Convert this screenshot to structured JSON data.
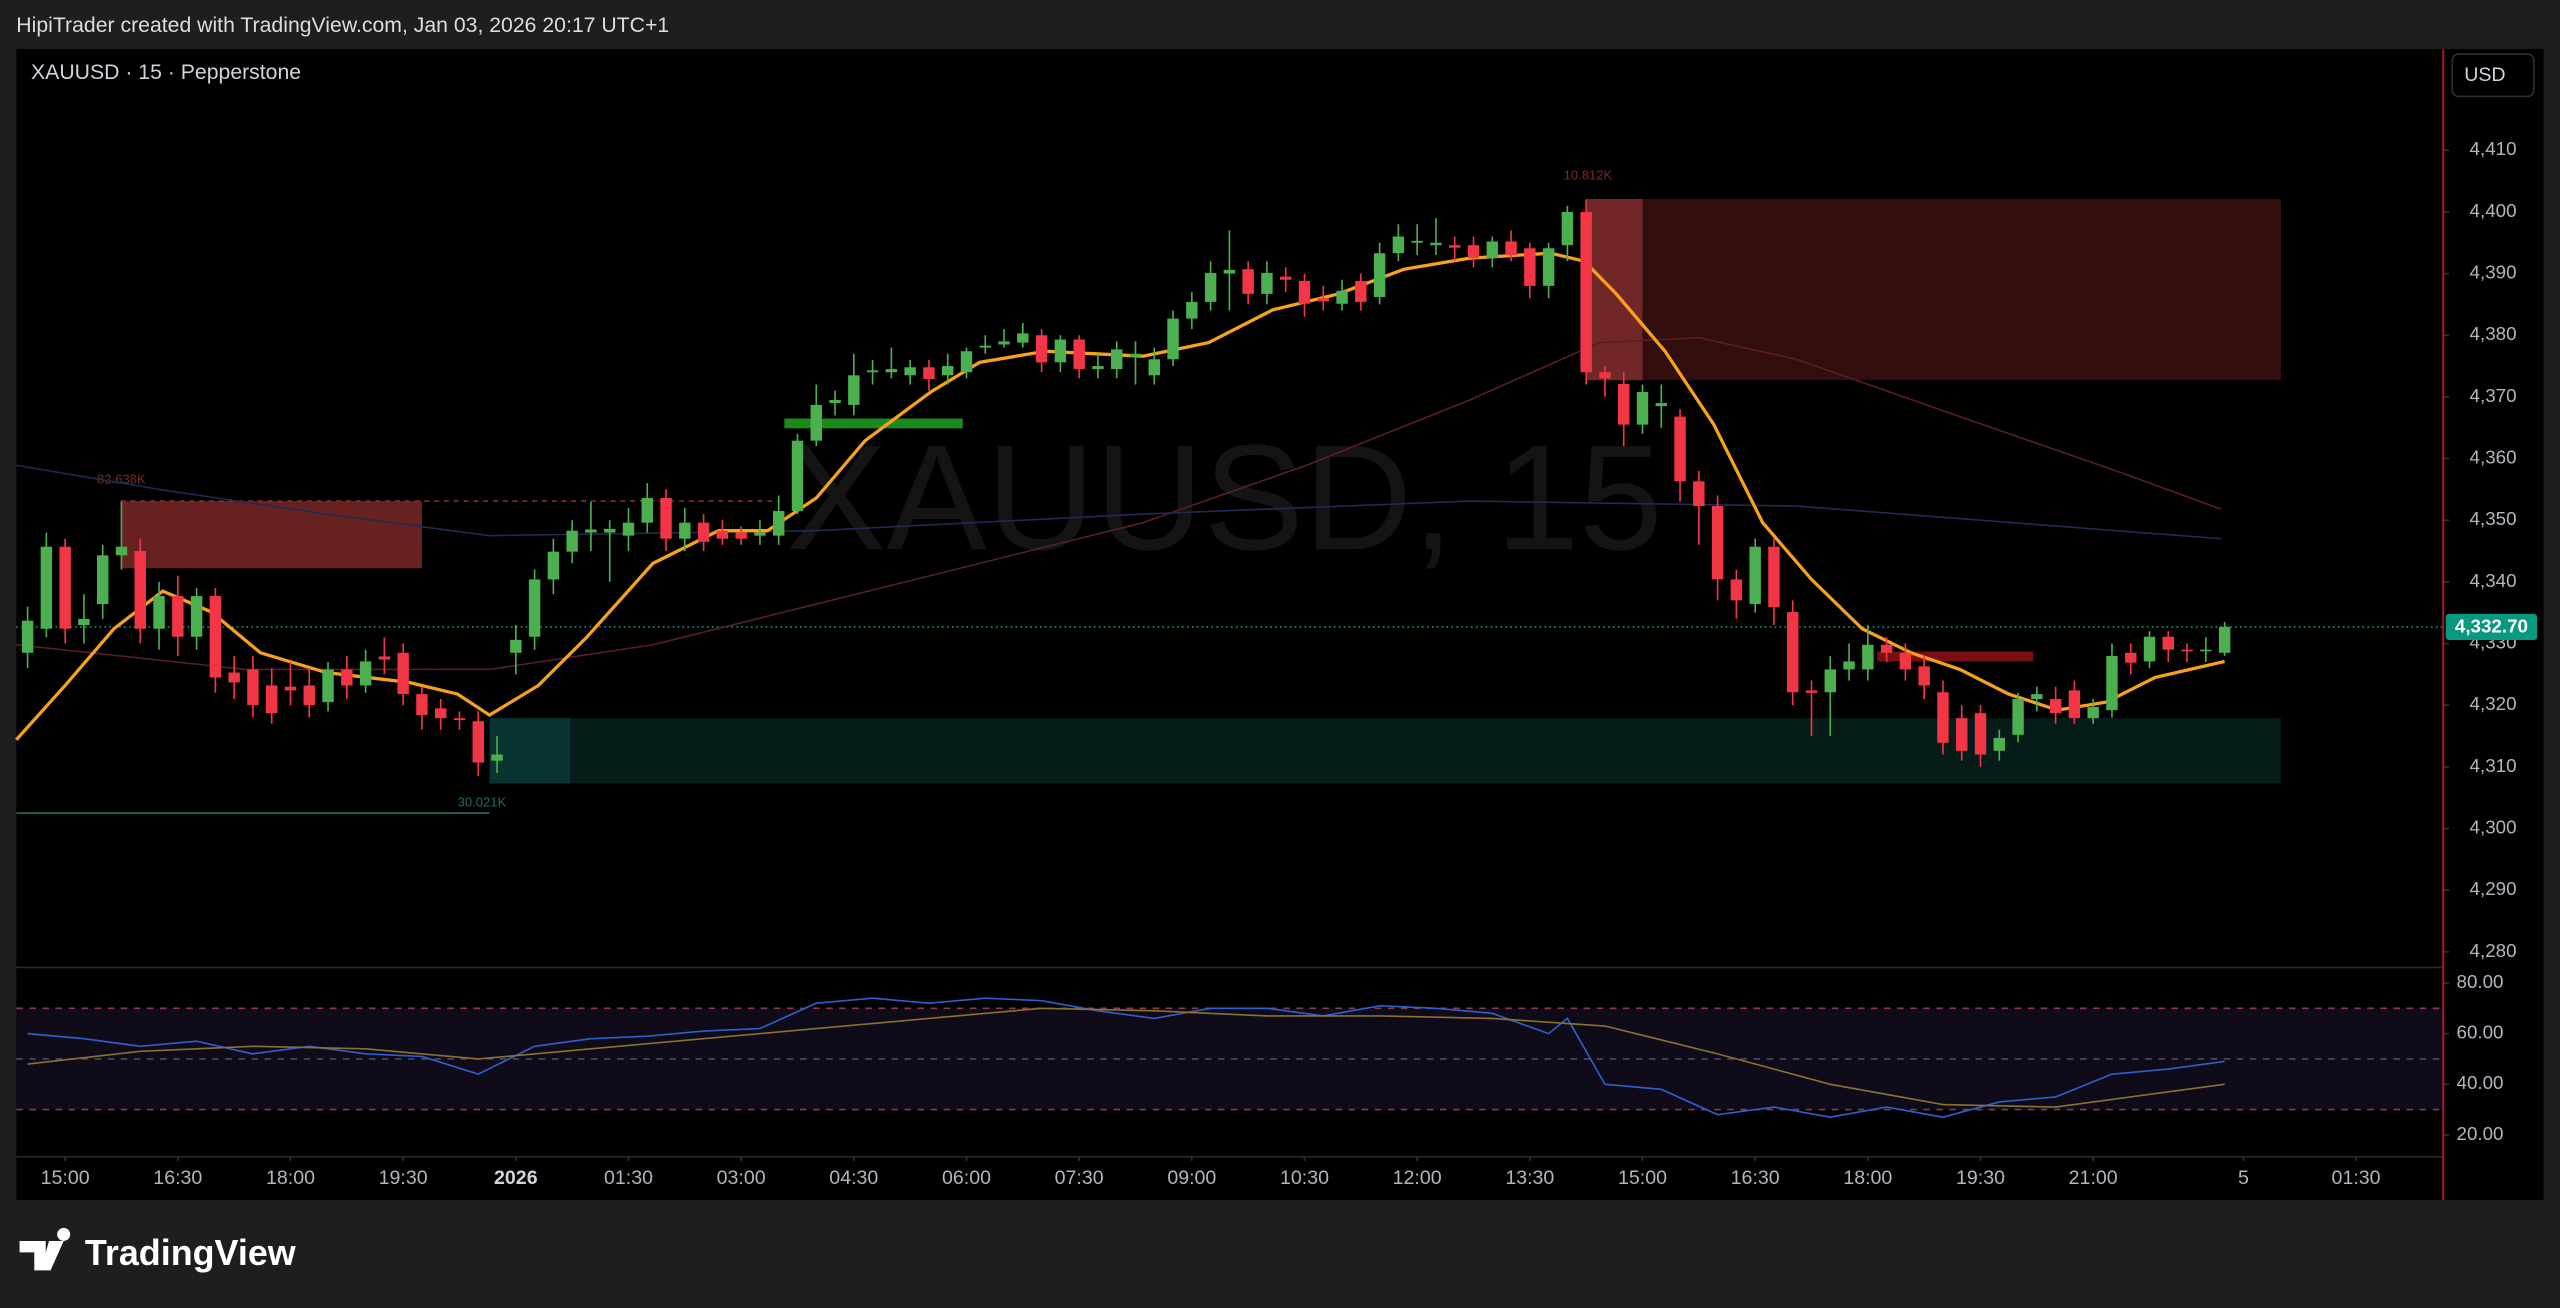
{
  "caption": "HipiTrader created with TradingView.com, Jan 03, 2026 20:17 UTC+1",
  "brand": "TradingView",
  "chart_data": {
    "type": "candlestick",
    "symbol_label": "XAUUSD · 15 · Pepperstone",
    "watermark": "XAUUSD, 15",
    "currency": "USD",
    "up_color": "#4caf50",
    "down_color": "#f23645",
    "xlim": [
      -0.6,
      128.6
    ],
    "xticks": [
      {
        "value": 2,
        "label": "15:00"
      },
      {
        "value": 8,
        "label": "16:30"
      },
      {
        "value": 14,
        "label": "18:00"
      },
      {
        "value": 20,
        "label": "19:30"
      },
      {
        "value": 26,
        "label": "2026"
      },
      {
        "value": 32,
        "label": "01:30"
      },
      {
        "value": 38,
        "label": "03:00"
      },
      {
        "value": 44,
        "label": "04:30"
      },
      {
        "value": 50,
        "label": "06:00"
      },
      {
        "value": 56,
        "label": "07:30"
      },
      {
        "value": 62,
        "label": "09:00"
      },
      {
        "value": 68,
        "label": "10:30"
      },
      {
        "value": 74,
        "label": "12:00"
      },
      {
        "value": 80,
        "label": "13:30"
      },
      {
        "value": 86,
        "label": "15:00"
      },
      {
        "value": 92,
        "label": "16:30"
      },
      {
        "value": 98,
        "label": "18:00"
      },
      {
        "value": 104,
        "label": "19:30"
      },
      {
        "value": 110,
        "label": "21:00"
      },
      {
        "value": 118,
        "label": "5"
      },
      {
        "value": 124,
        "label": "01:30"
      }
    ],
    "bold_ticks": [
      4
    ],
    "ylim": [
      4277.6,
      4426.4
    ],
    "yticks": [
      {
        "value": 4280,
        "label": "4,280"
      },
      {
        "value": 4290,
        "label": "4,290"
      },
      {
        "value": 4300,
        "label": "4,300"
      },
      {
        "value": 4310,
        "label": "4,310"
      },
      {
        "value": 4320,
        "label": "4,320"
      },
      {
        "value": 4330,
        "label": "4,330"
      },
      {
        "value": 4340,
        "label": "4,340"
      },
      {
        "value": 4350,
        "label": "4,350"
      },
      {
        "value": 4360,
        "label": "4,360"
      },
      {
        "value": 4370,
        "label": "4,370"
      },
      {
        "value": 4380,
        "label": "4,380"
      },
      {
        "value": 4390,
        "label": "4,390"
      },
      {
        "value": 4400,
        "label": "4,400"
      },
      {
        "value": 4410,
        "label": "4,410"
      }
    ],
    "open": [
      4328.5,
      4332.4,
      4345.7,
      4333,
      4336.4,
      4344.3,
      4345,
      4332.4,
      4337.7,
      4331.1,
      4337.7,
      4325.3,
      4325.8,
      4323.2,
      4323,
      4323.2,
      4320.5,
      4325.8,
      4323.2,
      4327.9,
      4328.5,
      4321.8,
      4319.5,
      4317.9,
      4317.4,
      4311,
      4328.5,
      4331.1,
      4340.4,
      4344.9,
      4348,
      4348,
      4347.5,
      4349.6,
      4353.6,
      4347,
      4349.6,
      4348.3,
      4348,
      4347.5,
      4347.5,
      4351.5,
      4362.9,
      4369,
      4368.7,
      4374,
      4374,
      4373.5,
      4374.8,
      4373.5,
      4374,
      4378,
      4378.5,
      4378.8,
      4380,
      4375.6,
      4379.3,
      4374.5,
      4374.5,
      4376.5,
      4373.5,
      4376.1,
      4382.7,
      4385.4,
      4390,
      4390.7,
      4386.7,
      4389.5,
      4388.8,
      4386,
      4385.1,
      4388.8,
      4386.2,
      4393.3,
      4395,
      4394.6,
      4394.6,
      4394.6,
      4392.5,
      4395.2,
      4394.1,
      4388,
      4394.6,
      4400,
      4374,
      4372.1,
      4365.5,
      4368.5,
      4366.8,
      4356.3,
      4352.3,
      4340.4,
      4336.4,
      4345.7,
      4335.1,
      4322.4,
      4322.1,
      4325.8,
      4325.8,
      4329.8,
      4328.5,
      4326.3,
      4322.1,
      4317.9,
      4318.7,
      4312.6,
      4315.2,
      4321,
      4321,
      4322.4,
      4317.9,
      4319.2,
      4328.5,
      4327.1,
      4331.1,
      4329,
      4328.8,
      4328.5
    ],
    "high": [
      4336,
      4348,
      4347,
      4338,
      4346,
      4353,
      4347,
      4340,
      4341,
      4339,
      4339,
      4328,
      4328,
      4326,
      4327,
      4326,
      4327,
      4328,
      4329,
      4331,
      4330,
      4323,
      4321,
      4319,
      4319,
      4315,
      4333,
      4342,
      4347,
      4350,
      4353,
      4350,
      4352,
      4356,
      4355,
      4352,
      4351,
      4350,
      4349,
      4350,
      4354,
      4364,
      4372,
      4371,
      4377,
      4376,
      4378,
      4376,
      4376,
      4377,
      4378,
      4380,
      4381,
      4382,
      4381,
      4380,
      4380,
      4377,
      4379,
      4379,
      4378,
      4384,
      4387,
      4392,
      4397,
      4392,
      4392,
      4391,
      4390,
      4388,
      4389,
      4390,
      4395,
      4398,
      4398,
      4399,
      4396,
      4396,
      4396,
      4397,
      4395,
      4395,
      4401,
      4402,
      4375,
      4374,
      4372,
      4372,
      4368,
      4358,
      4354,
      4342,
      4347,
      4347,
      4337,
      4324,
      4328,
      4330,
      4333,
      4331,
      4330,
      4328,
      4324,
      4320,
      4320,
      4316,
      4322,
      4323,
      4323,
      4324,
      4321,
      4330,
      4330,
      4332,
      4332,
      4330,
      4331,
      4333.5
    ],
    "low": [
      4326,
      4331,
      4330,
      4330,
      4334,
      4342,
      4330,
      4329,
      4328,
      4329,
      4322,
      4321,
      4318,
      4317,
      4320,
      4318,
      4319,
      4321,
      4322,
      4325,
      4320,
      4316,
      4316,
      4316,
      4308.5,
      4309,
      4325,
      4329,
      4338,
      4343,
      4345,
      4340,
      4345,
      4348,
      4345,
      4345,
      4345,
      4346,
      4346,
      4346,
      4346,
      4351,
      4362,
      4367,
      4367,
      4372,
      4373,
      4372,
      4371,
      4372,
      4373,
      4377,
      4378,
      4378,
      4374,
      4374,
      4373,
      4373,
      4373,
      4372,
      4372,
      4375,
      4381,
      4384,
      4384,
      4385,
      4385,
      4387,
      4383,
      4384,
      4384,
      4384,
      4385,
      4392,
      4393,
      4393,
      4392,
      4391,
      4391,
      4392,
      4386,
      4386,
      4392,
      4372,
      4370,
      4362,
      4364,
      4365,
      4353,
      4346,
      4337,
      4334,
      4335,
      4333,
      4320,
      4315,
      4315,
      4324,
      4324,
      4327,
      4324,
      4321,
      4312,
      4311,
      4310,
      4311,
      4314,
      4319,
      4317,
      4317,
      4317,
      4318,
      4325,
      4326,
      4327,
      4327,
      4327,
      4328
    ],
    "close": [
      4333.7,
      4345.7,
      4332.4,
      4334,
      4344.3,
      4345.7,
      4332.4,
      4337.7,
      4331.1,
      4337.7,
      4324.5,
      4323.7,
      4320,
      4318.7,
      4322.4,
      4320,
      4325.8,
      4323.2,
      4327.1,
      4327.4,
      4321.8,
      4318.4,
      4317.9,
      4317.6,
      4310.7,
      4312,
      4330.6,
      4340.4,
      4344.9,
      4348.3,
      4348.5,
      4348.6,
      4349.6,
      4353.6,
      4347,
      4349.6,
      4346.5,
      4347,
      4347,
      4348,
      4351.5,
      4362.9,
      4368.7,
      4369.5,
      4373.5,
      4374.3,
      4374.5,
      4374.8,
      4372.9,
      4375,
      4377.4,
      4378.3,
      4379,
      4380.3,
      4375.6,
      4379.3,
      4374.5,
      4375,
      4377.7,
      4377,
      4376.1,
      4382.7,
      4385.4,
      4390.1,
      4390.6,
      4386.7,
      4390.1,
      4389,
      4385.1,
      4385.5,
      4387.2,
      4385.4,
      4393.3,
      4396,
      4395.3,
      4395,
      4394.2,
      4392.5,
      4395.2,
      4393,
      4388,
      4394.1,
      4400,
      4374,
      4373,
      4365.5,
      4370.8,
      4369,
      4356.3,
      4352.3,
      4340.4,
      4337,
      4345.7,
      4335.9,
      4322.1,
      4322,
      4325.8,
      4327.1,
      4329.8,
      4328.5,
      4325.8,
      4323.2,
      4313.9,
      4312.6,
      4312,
      4314.7,
      4321,
      4321.8,
      4318.7,
      4317.9,
      4319.7,
      4328,
      4326.9,
      4331.1,
      4329,
      4328.8,
      4329,
      4332.7
    ],
    "overlays": [
      {
        "color": "#5a1e22",
        "width": 1,
        "x": [
          -0.6,
          11.6,
          24.6,
          33.3,
          42,
          50.7,
          59.4,
          68.1,
          76.8,
          83.7,
          89,
          94.2,
          102.9,
          111.6,
          116.8
        ],
        "values": [
          4329.8,
          4325.8,
          4325.8,
          4329.8,
          4336.4,
          4343,
          4349.6,
          4358.9,
          4369.5,
          4378.8,
          4379.6,
          4376.1,
          4366.8,
          4357.6,
          4351.8
        ]
      },
      {
        "color": "#1f2a55",
        "width": 1,
        "x": [
          -0.6,
          7.2,
          15.9,
          24.6,
          42,
          59.4,
          76.8,
          94.2,
          116.8
        ],
        "values": [
          4358.9,
          4354.9,
          4351,
          4347.5,
          4348.3,
          4351,
          4353.1,
          4352.3,
          4347
        ]
      },
      {
        "color": "#f7a21b",
        "width": 2,
        "x": [
          -0.6,
          2,
          4.6,
          7.2,
          9.8,
          12.4,
          15.9,
          20.3,
          22.9,
          24.6,
          27.2,
          29.8,
          33.3,
          36.8,
          39.4,
          42,
          44.6,
          48.1,
          50.7,
          54.2,
          59.4,
          62.9,
          66.3,
          69.8,
          73.3,
          76.8,
          81.1,
          82.9,
          84.6,
          87.2,
          89.8,
          92.4,
          95,
          97.7,
          100.3,
          102.9,
          105.5,
          108.1,
          110.7,
          113.3,
          117
        ],
        "values": [
          4314.4,
          4323.2,
          4332.4,
          4338.5,
          4335.1,
          4328.5,
          4325.3,
          4323.7,
          4321.8,
          4318.4,
          4323.2,
          4331.1,
          4343,
          4348.3,
          4348.3,
          4353.6,
          4362.9,
          4370.8,
          4375.6,
          4377.4,
          4376.6,
          4378.8,
          4384.1,
          4386.7,
          4390.7,
          4392.5,
          4393.3,
          4392,
          4386.7,
          4377.4,
          4365.5,
          4349.6,
          4340.4,
          4332.4,
          4328.5,
          4325.8,
          4321.8,
          4319.2,
          4320.5,
          4324.5,
          4327.1
        ]
      }
    ],
    "zones": [
      {
        "x": [
          4.96,
          21
        ],
        "y": [
          4342.2,
          4353.1
        ],
        "color": "rgba(190,60,60,0.55)"
      },
      {
        "x": [
          83,
          120
        ],
        "y": [
          4372.7,
          4402.1
        ],
        "color": "rgba(120,30,30,0.42)"
      },
      {
        "x": [
          83,
          86
        ],
        "y": [
          4372.7,
          4402.1
        ],
        "color": "rgba(190,70,70,0.45)"
      },
      {
        "x": [
          24.6,
          120
        ],
        "y": [
          4307.3,
          4317.9
        ],
        "color": "rgba(20,110,100,0.25)"
      },
      {
        "x": [
          24.6,
          28.9
        ],
        "y": [
          4307.3,
          4317.9
        ],
        "color": "rgba(20,110,100,0.3)"
      },
      {
        "x": [
          40.3,
          49.8
        ],
        "y": [
          4364.9,
          4366.5
        ],
        "color": "#1b8a1b"
      },
      {
        "x": [
          98.5,
          106.8
        ],
        "y": [
          4327.1,
          4328.7
        ],
        "color": "#7a0f12"
      }
    ],
    "lines": [
      {
        "x": [
          4.96,
          40
        ],
        "y": 4353.1,
        "color": "#8a2b2b",
        "dash": "3 3"
      },
      {
        "x": [
          -0.6,
          24.6
        ],
        "y": 4302.5,
        "color": "#1f6e68",
        "dash": "0"
      }
    ],
    "annotations": [
      {
        "text": "82.638K",
        "x": 3.7,
        "y": 4356.5,
        "color": "#7a2a2a"
      },
      {
        "text": "10.812K",
        "x": 81.8,
        "y": 4405.8,
        "color": "#7a2a2a"
      },
      {
        "text": "30.021K",
        "x": 22.9,
        "y": 4304.1,
        "color": "#1f6e68"
      }
    ],
    "last_price": {
      "value": 4332.7,
      "label": "4,332.70",
      "color": "#089981"
    },
    "rsi": {
      "ylim": [
        12.3,
        85.8
      ],
      "yticks": [
        {
          "value": 20,
          "label": "20.00"
        },
        {
          "value": 40,
          "label": "40.00"
        },
        {
          "value": 60,
          "label": "60.00"
        },
        {
          "value": 80,
          "label": "80.00"
        }
      ],
      "levels": [
        30,
        50,
        70
      ],
      "band_color": "rgba(126,87,194,0.12)",
      "series": [
        {
          "color": "#2f5fd0",
          "x": [
            0,
            3,
            6,
            9,
            12,
            15,
            18,
            21,
            24,
            27,
            30,
            33,
            36,
            39,
            42,
            45,
            48,
            51,
            54,
            57,
            60,
            63,
            66,
            69,
            72,
            75,
            78,
            81,
            82,
            84,
            87,
            90,
            93,
            96,
            99,
            102,
            105,
            108,
            111,
            114,
            117
          ],
          "values": [
            60,
            58,
            55,
            57,
            52,
            55,
            52,
            51,
            44,
            55,
            58,
            59,
            61,
            62,
            72,
            74,
            72,
            74,
            73,
            69,
            66,
            70,
            70,
            67,
            71,
            70,
            68,
            60,
            66,
            40,
            38,
            28,
            31,
            27,
            31,
            27,
            33,
            35,
            44,
            46,
            49
          ]
        },
        {
          "color": "#8a7230",
          "x": [
            0,
            6,
            12,
            18,
            24,
            30,
            36,
            42,
            48,
            54,
            60,
            66,
            72,
            78,
            84,
            90,
            96,
            102,
            108,
            114,
            117
          ],
          "values": [
            48,
            53,
            55,
            54,
            50,
            54,
            58,
            62,
            66,
            70,
            69,
            67,
            67,
            66,
            63,
            52,
            40,
            32,
            31,
            37,
            40
          ]
        }
      ]
    }
  }
}
